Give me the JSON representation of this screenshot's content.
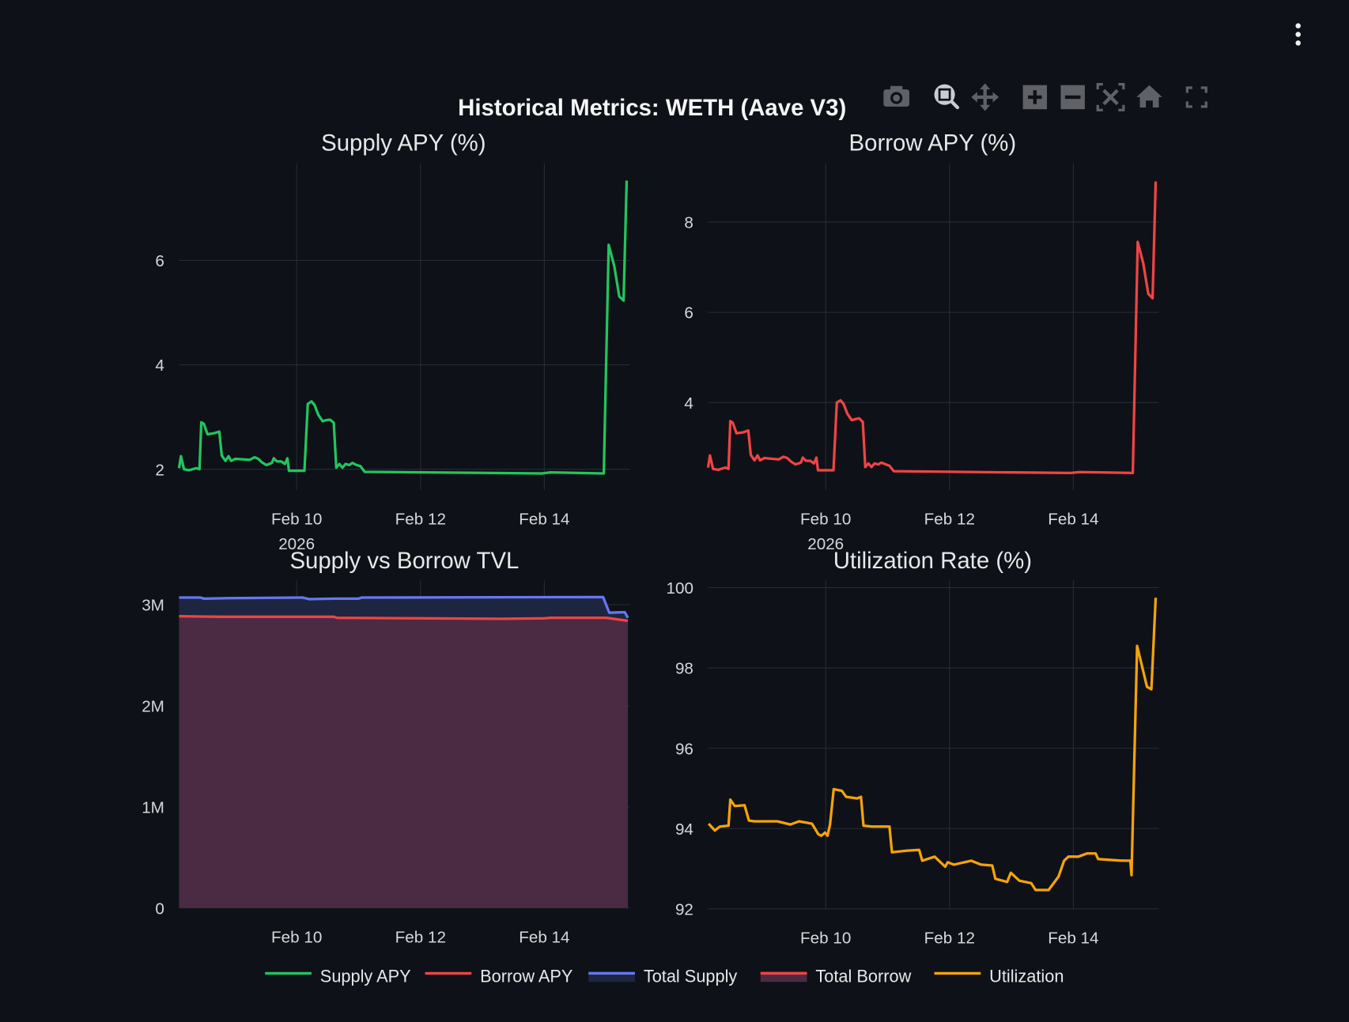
{
  "title": "Historical Metrics: WETH (Aave V3)",
  "toolbar": [
    "camera-icon",
    "zoom-icon",
    "pan-icon",
    "zoom-in-icon",
    "zoom-out-icon",
    "autoscale-icon",
    "reset-axes-home-icon",
    "fullscreen-icon"
  ],
  "colors": {
    "background": "#0e1117",
    "grid": "#262c36",
    "supply_apy": "#22c55e",
    "borrow_apy": "#ef4444",
    "total_supply": "#6478f0",
    "total_borrow": "#ef4444",
    "utilization": "#f5a30b",
    "supply_fill": "#1e2540",
    "borrow_fill": "#4a2b43"
  },
  "legend": [
    "Supply APY",
    "Borrow APY",
    "Total Supply",
    "Total Borrow",
    "Utilization"
  ],
  "chart_data": [
    {
      "type": "line",
      "title": "Supply APY (%)",
      "x_unit": "day of Feb 2026",
      "xticks": [
        {
          "value": 10,
          "label": "Feb 10",
          "sublabel": "2026"
        },
        {
          "value": 12,
          "label": "Feb 12"
        },
        {
          "value": 14,
          "label": "Feb 14"
        }
      ],
      "xlim": [
        8.1,
        15.38
      ],
      "ylim": [
        1.6,
        7.86
      ],
      "yticks": [
        2,
        4,
        6
      ],
      "series": [
        {
          "name": "Supply APY",
          "x": [
            8.1,
            8.13,
            8.18,
            8.26,
            8.38,
            8.43,
            8.46,
            8.5,
            8.56,
            8.67,
            8.75,
            8.79,
            8.85,
            8.9,
            8.94,
            9.01,
            9.24,
            9.32,
            9.38,
            9.44,
            9.51,
            9.6,
            9.63,
            9.68,
            9.75,
            9.81,
            9.85,
            9.875,
            10.125,
            10.18,
            10.24,
            10.29,
            10.35,
            10.42,
            10.47,
            10.54,
            10.6,
            10.64,
            10.69,
            10.74,
            10.79,
            10.85,
            10.9,
            10.97,
            11.03,
            11.1,
            13.96,
            14.1,
            14.96,
            15.04,
            15.13,
            15.21,
            15.28,
            15.33
          ],
          "y": [
            2.02,
            2.25,
            2.0,
            1.98,
            2.02,
            2.0,
            2.9,
            2.87,
            2.67,
            2.69,
            2.72,
            2.26,
            2.16,
            2.25,
            2.16,
            2.2,
            2.18,
            2.23,
            2.2,
            2.13,
            2.08,
            2.12,
            2.21,
            2.15,
            2.15,
            2.1,
            2.21,
            1.97,
            1.97,
            3.25,
            3.3,
            3.23,
            3.04,
            2.92,
            2.94,
            2.95,
            2.89,
            2.03,
            2.1,
            2.03,
            2.1,
            2.08,
            2.12,
            2.08,
            2.06,
            1.95,
            1.92,
            1.94,
            1.92,
            6.3,
            5.89,
            5.31,
            5.23,
            7.53
          ]
        }
      ]
    },
    {
      "type": "line",
      "title": "Borrow APY (%)",
      "x_unit": "day of Feb 2026",
      "xticks": [
        {
          "value": 10,
          "label": "Feb 10",
          "sublabel": "2026"
        },
        {
          "value": 12,
          "label": "Feb 12"
        },
        {
          "value": 14,
          "label": "Feb 14"
        }
      ],
      "xlim": [
        8.1,
        15.38
      ],
      "ylim": [
        2.06,
        9.3
      ],
      "yticks": [
        4,
        6,
        8
      ],
      "series": [
        {
          "name": "Borrow APY",
          "x": [
            8.1,
            8.13,
            8.18,
            8.26,
            8.38,
            8.43,
            8.46,
            8.5,
            8.56,
            8.67,
            8.75,
            8.79,
            8.85,
            8.9,
            8.94,
            9.01,
            9.24,
            9.32,
            9.38,
            9.44,
            9.51,
            9.6,
            9.63,
            9.68,
            9.75,
            9.81,
            9.85,
            9.875,
            10.125,
            10.18,
            10.24,
            10.29,
            10.35,
            10.42,
            10.47,
            10.54,
            10.6,
            10.64,
            10.69,
            10.74,
            10.79,
            10.85,
            10.9,
            10.97,
            11.03,
            11.1,
            13.96,
            14.1,
            14.96,
            15.04,
            15.13,
            15.21,
            15.28,
            15.33
          ],
          "y": [
            2.56,
            2.83,
            2.53,
            2.51,
            2.56,
            2.53,
            3.59,
            3.55,
            3.32,
            3.34,
            3.38,
            2.84,
            2.72,
            2.83,
            2.72,
            2.77,
            2.74,
            2.8,
            2.77,
            2.69,
            2.63,
            2.67,
            2.78,
            2.71,
            2.71,
            2.65,
            2.78,
            2.5,
            2.5,
            4.0,
            4.05,
            3.97,
            3.75,
            3.61,
            3.63,
            3.65,
            3.57,
            2.57,
            2.65,
            2.57,
            2.65,
            2.63,
            2.67,
            2.63,
            2.6,
            2.48,
            2.44,
            2.46,
            2.44,
            7.56,
            7.08,
            6.41,
            6.31,
            8.9
          ]
        }
      ]
    },
    {
      "type": "area",
      "title": "Supply vs Borrow TVL",
      "x_unit": "day of Feb 2026",
      "xticks": [
        {
          "value": 10,
          "label": "Feb 10"
        },
        {
          "value": 12,
          "label": "Feb 12"
        },
        {
          "value": 14,
          "label": "Feb 14"
        }
      ],
      "xlim": [
        8.1,
        15.38
      ],
      "ylim": [
        0,
        3.24
      ],
      "yticks": [
        0,
        1,
        2,
        3
      ],
      "ytick_labels": [
        "0",
        "1M",
        "2M",
        "3M"
      ],
      "series": [
        {
          "name": "Total Supply",
          "x": [
            8.1,
            8.45,
            8.5,
            8.9,
            10.1,
            10.2,
            10.6,
            11.0,
            11.05,
            14.95,
            15.05,
            15.3,
            15.35
          ],
          "y": [
            3.07,
            3.07,
            3.06,
            3.065,
            3.07,
            3.055,
            3.06,
            3.06,
            3.07,
            3.075,
            2.92,
            2.925,
            2.87
          ]
        },
        {
          "name": "Total Borrow",
          "x": [
            8.1,
            8.75,
            10.6,
            10.65,
            12.0,
            13.3,
            14.0,
            14.1,
            15.0,
            15.35
          ],
          "y": [
            2.885,
            2.88,
            2.88,
            2.87,
            2.865,
            2.86,
            2.865,
            2.87,
            2.87,
            2.84
          ]
        }
      ]
    },
    {
      "type": "line",
      "title": "Utilization Rate (%)",
      "x_unit": "day of Feb 2026",
      "xticks": [
        {
          "value": 10,
          "label": "Feb 10"
        },
        {
          "value": 12,
          "label": "Feb 12"
        },
        {
          "value": 14,
          "label": "Feb 14"
        }
      ],
      "xlim": [
        8.1,
        15.38
      ],
      "ylim": [
        92,
        100.18
      ],
      "yticks": [
        92,
        94,
        96,
        98,
        100
      ],
      "series": [
        {
          "name": "Utilization",
          "x": [
            8.11,
            8.21,
            8.29,
            8.43,
            8.46,
            8.53,
            8.69,
            8.76,
            8.85,
            9.22,
            9.43,
            9.57,
            9.78,
            9.88,
            9.93,
            9.99,
            10.03,
            10.07,
            10.13,
            10.26,
            10.33,
            10.51,
            10.57,
            10.61,
            10.75,
            11.03,
            11.07,
            11.31,
            11.51,
            11.56,
            11.76,
            11.93,
            11.97,
            12.07,
            12.35,
            12.51,
            12.69,
            12.74,
            12.93,
            12.99,
            13.13,
            13.32,
            13.39,
            13.6,
            13.76,
            13.85,
            13.92,
            14.08,
            14.22,
            14.36,
            14.4,
            14.78,
            14.92,
            14.94,
            15.03,
            15.19,
            15.26,
            15.33
          ],
          "y": [
            94.12,
            93.95,
            94.05,
            94.07,
            94.72,
            94.56,
            94.58,
            94.2,
            94.18,
            94.18,
            94.1,
            94.18,
            94.12,
            93.86,
            93.82,
            93.9,
            93.82,
            94.1,
            94.98,
            94.94,
            94.79,
            94.75,
            94.79,
            94.07,
            94.05,
            94.05,
            93.41,
            93.45,
            93.47,
            93.2,
            93.3,
            93.05,
            93.16,
            93.1,
            93.2,
            93.1,
            93.08,
            92.75,
            92.67,
            92.9,
            92.7,
            92.64,
            92.47,
            92.47,
            92.8,
            93.2,
            93.3,
            93.3,
            93.38,
            93.38,
            93.24,
            93.2,
            93.2,
            92.84,
            98.55,
            97.53,
            97.47,
            99.75
          ]
        }
      ]
    }
  ]
}
